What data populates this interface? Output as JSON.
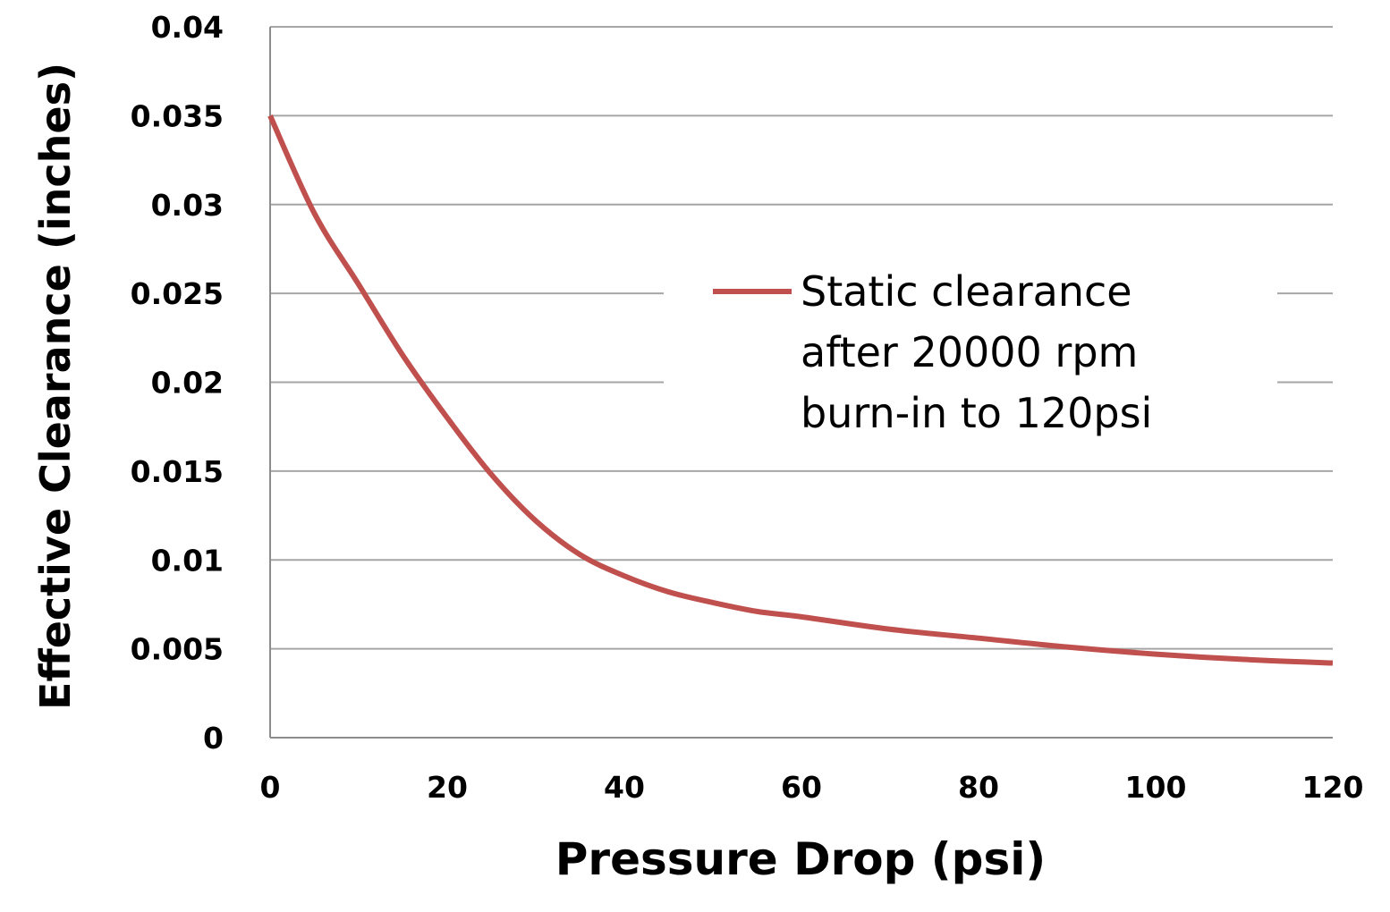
{
  "chart_data": {
    "type": "line",
    "xlabel": "Pressure Drop (psi)",
    "ylabel": "Effective Clearance (inches)",
    "xlim": [
      0,
      120
    ],
    "ylim": [
      0,
      0.04
    ],
    "x_ticks": [
      0,
      20,
      40,
      60,
      80,
      100,
      120
    ],
    "x_tick_labels": [
      "0",
      "20",
      "40",
      "60",
      "80",
      "100",
      "120"
    ],
    "y_ticks": [
      0,
      0.005,
      0.01,
      0.015,
      0.02,
      0.025,
      0.03,
      0.035,
      0.04
    ],
    "y_tick_labels": [
      "0",
      "0.005",
      "0.01",
      "0.015",
      "0.02",
      "0.025",
      "0.03",
      "0.035",
      "0.04"
    ],
    "grid": true,
    "legend_position": "right",
    "series": [
      {
        "name": "Static clearance after 20000 rpm burn-in to 120psi",
        "name_lines": [
          "Static clearance",
          "after 20000 rpm",
          "burn-in to 120psi"
        ],
        "color": "#c0504d",
        "x": [
          0,
          5,
          10,
          15,
          20,
          25,
          30,
          35,
          40,
          45,
          50,
          55,
          60,
          70,
          80,
          90,
          100,
          110,
          120
        ],
        "y": [
          0.035,
          0.0295,
          0.0255,
          0.0215,
          0.018,
          0.0148,
          0.0122,
          0.0103,
          0.0091,
          0.0082,
          0.0076,
          0.0071,
          0.0068,
          0.0061,
          0.0056,
          0.0051,
          0.0047,
          0.0044,
          0.0042
        ]
      }
    ]
  }
}
